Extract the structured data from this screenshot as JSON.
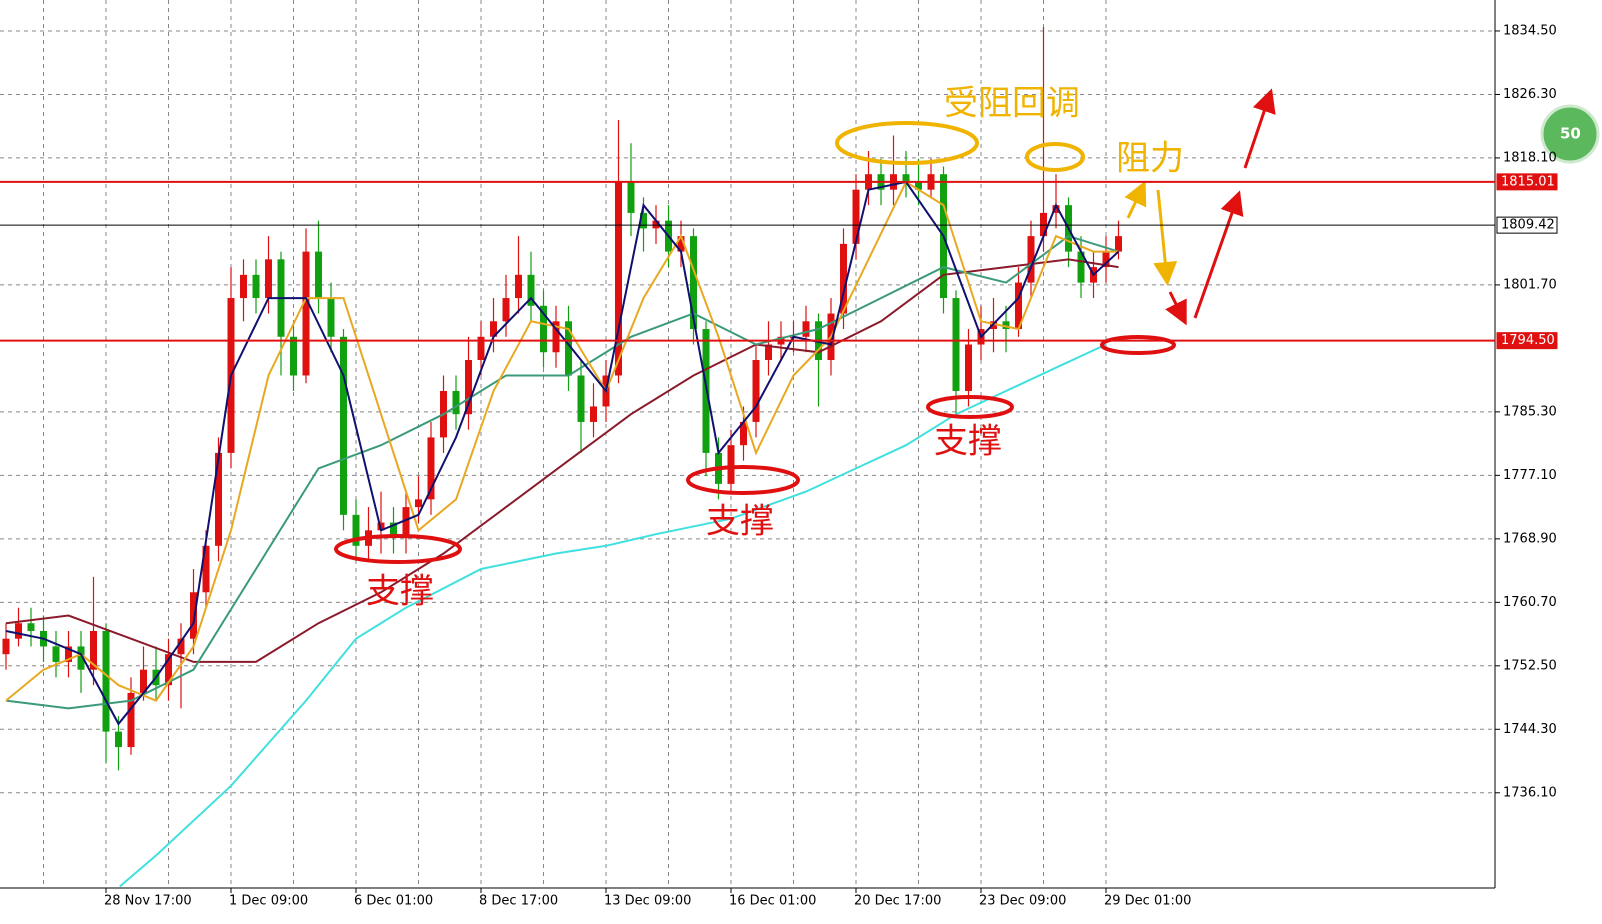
{
  "chart_data": {
    "type": "candlestick",
    "x": [
      null,
      null,
      null,
      null,
      null,
      null,
      null,
      null,
      "28 Nov 17:00",
      null,
      null,
      null,
      null,
      null,
      null,
      null,
      null,
      null,
      "1 Dec 09:00",
      null,
      null,
      null,
      null,
      null,
      null,
      null,
      null,
      null,
      "6 Dec 01:00",
      null,
      null,
      null,
      null,
      null,
      null,
      null,
      null,
      null,
      "8 Dec 17:00",
      null,
      null,
      null,
      null,
      null,
      null,
      null,
      null,
      null,
      "13 Dec 09:00",
      null,
      null,
      null,
      null,
      null,
      null,
      null,
      null,
      null,
      "16 Dec 01:00",
      null,
      null,
      null,
      null,
      null,
      null,
      null,
      null,
      null,
      "20 Dec 17:00",
      null,
      null,
      null,
      null,
      null,
      null,
      null,
      null,
      null,
      "23 Dec 09:00",
      null,
      null,
      null,
      null,
      null,
      null,
      null,
      null,
      null,
      "29 Dec 01:00",
      null
    ],
    "open": [
      1754,
      1756,
      1758,
      1757,
      1755,
      1753,
      1755,
      1752,
      1757,
      1744,
      1742,
      1749,
      1752,
      1750,
      1754,
      1756,
      1762,
      1768,
      1780,
      1800,
      1803,
      1800,
      1805,
      1795,
      1790,
      1806,
      1800,
      1795,
      1772,
      1768,
      1770,
      1771,
      1769,
      1773,
      1774,
      1782,
      1788,
      1785,
      1792,
      1795,
      1797,
      1800,
      1803,
      1799,
      1793,
      1797,
      1790,
      1784,
      1786,
      1790,
      1815,
      1811,
      1809,
      1810,
      1806,
      1808,
      1796,
      1780,
      1776,
      1781,
      1784,
      1792,
      1794,
      1795,
      1795,
      1797,
      1792,
      1798,
      1807,
      1814,
      1816,
      1814,
      1816,
      1815,
      1814,
      1816,
      1800,
      1788,
      1794,
      1796,
      1797,
      1796,
      1802,
      1808,
      1811,
      1812,
      1806,
      1802,
      1804,
      1806
    ],
    "high": [
      1758,
      1760,
      1760,
      1759,
      1757,
      1757,
      1757,
      1764,
      1758,
      1746,
      1751,
      1755,
      1755,
      1756,
      1758,
      1765,
      1770,
      1782,
      1804,
      1805,
      1805,
      1808,
      1806,
      1797,
      1809,
      1810,
      1802,
      1796,
      1774,
      1773,
      1775,
      1773,
      1775,
      1777,
      1784,
      1790,
      1790,
      1795,
      1797,
      1800,
      1803,
      1808,
      1806,
      1801,
      1799,
      1799,
      1792,
      1789,
      1792,
      1823,
      1820,
      1813,
      1812,
      1812,
      1810,
      1809,
      1797,
      1782,
      1783,
      1786,
      1794,
      1797,
      1797,
      1797,
      1799,
      1798,
      1800,
      1809,
      1816,
      1819,
      1818,
      1821,
      1819,
      1818,
      1818,
      1817,
      1801,
      1796,
      1799,
      1800,
      1799,
      1804,
      1810,
      1835,
      1816,
      1813,
      1808,
      1806,
      1808,
      1810
    ],
    "low": [
      1752,
      1755,
      1755,
      1753,
      1751,
      1751,
      1749,
      1750,
      1740,
      1739,
      1741,
      1748,
      1748,
      1748,
      1747,
      1754,
      1760,
      1766,
      1778,
      1797,
      1798,
      1798,
      1790,
      1788,
      1789,
      1798,
      1793,
      1770,
      1766,
      1766,
      1767,
      1767,
      1767,
      1771,
      1772,
      1780,
      1783,
      1783,
      1790,
      1793,
      1795,
      1798,
      1797,
      1791,
      1791,
      1788,
      1780,
      1782,
      1784,
      1789,
      1808,
      1806,
      1807,
      1804,
      1804,
      1794,
      1777,
      1774,
      1775,
      1779,
      1782,
      1790,
      1792,
      1793,
      1793,
      1786,
      1790,
      1796,
      1805,
      1812,
      1812,
      1812,
      1813,
      1812,
      1813,
      1798,
      1785,
      1786,
      1792,
      1793,
      1793,
      1795,
      1800,
      1806,
      1809,
      1804,
      1800,
      1800,
      1802,
      1805
    ],
    "close": [
      1756,
      1758,
      1757,
      1755,
      1753,
      1755,
      1752,
      1757,
      1744,
      1742,
      1749,
      1752,
      1750,
      1754,
      1756,
      1762,
      1768,
      1780,
      1800,
      1803,
      1800,
      1805,
      1795,
      1790,
      1806,
      1800,
      1795,
      1772,
      1768,
      1770,
      1771,
      1769,
      1773,
      1774,
      1782,
      1788,
      1785,
      1792,
      1795,
      1797,
      1800,
      1803,
      1799,
      1793,
      1797,
      1790,
      1784,
      1786,
      1790,
      1815,
      1811,
      1809,
      1810,
      1806,
      1808,
      1796,
      1780,
      1776,
      1781,
      1784,
      1792,
      1794,
      1795,
      1795,
      1797,
      1792,
      1798,
      1807,
      1814,
      1816,
      1814,
      1816,
      1815,
      1814,
      1816,
      1800,
      1788,
      1794,
      1796,
      1797,
      1796,
      1802,
      1808,
      1811,
      1812,
      1806,
      1802,
      1804,
      1806,
      1808
    ],
    "up_color": "#e01010",
    "down_color": "#10a010",
    "lines": [
      {
        "color": "#40e0e0",
        "x": [
          9.1,
          12,
          18,
          24,
          28,
          32,
          38,
          44,
          48,
          52,
          58,
          64,
          68,
          72,
          76,
          80,
          84,
          88
        ],
        "values": [
          1724,
          1728,
          1737,
          1748,
          1756,
          1760,
          1765,
          1767,
          1768,
          1769.5,
          1771.5,
          1775,
          1778,
          1781,
          1785,
          1788,
          1791,
          1794
        ]
      },
      {
        "color": "#8b1a2a",
        "x": [
          0,
          5,
          10,
          15,
          20,
          25,
          30,
          35,
          40,
          45,
          50,
          55,
          60,
          65,
          70,
          75,
          80,
          85,
          89
        ],
        "values": [
          1758,
          1759,
          1756,
          1753,
          1753,
          1758,
          1762,
          1767,
          1773,
          1779,
          1785,
          1790,
          1794,
          1793,
          1797,
          1803,
          1804,
          1805,
          1804
        ]
      },
      {
        "color": "#3a9a7a",
        "x": [
          0,
          5,
          10,
          15,
          20,
          25,
          30,
          35,
          40,
          45,
          50,
          55,
          60,
          65,
          70,
          75,
          80,
          85,
          89
        ],
        "values": [
          1748,
          1747,
          1748,
          1752,
          1765,
          1778,
          1781,
          1785,
          1790,
          1790,
          1795,
          1798,
          1794,
          1796,
          1800,
          1804,
          1802,
          1808,
          1806
        ]
      },
      {
        "color": "#e8a820",
        "x": [
          0,
          3,
          6,
          9,
          12,
          15,
          18,
          21,
          24,
          27,
          30,
          33,
          36,
          39,
          42,
          45,
          48,
          51,
          54,
          57,
          60,
          63,
          66,
          69,
          72,
          75,
          78,
          81,
          84,
          87,
          89
        ],
        "values": [
          1748,
          1752,
          1754,
          1750,
          1748,
          1755,
          1770,
          1790,
          1800,
          1800,
          1785,
          1770,
          1774,
          1788,
          1797,
          1796,
          1788,
          1800,
          1808,
          1795,
          1780,
          1790,
          1795,
          1805,
          1815,
          1812,
          1797,
          1796,
          1808,
          1806,
          1806
        ]
      },
      {
        "color": "#101070",
        "x": [
          0,
          3,
          6,
          9,
          12,
          15,
          18,
          21,
          24,
          27,
          30,
          33,
          36,
          39,
          42,
          45,
          48,
          51,
          54,
          57,
          60,
          63,
          66,
          69,
          72,
          75,
          78,
          81,
          84,
          87,
          89
        ],
        "values": [
          1757,
          1756,
          1754,
          1745,
          1751,
          1758,
          1790,
          1800,
          1800,
          1790,
          1770,
          1772,
          1782,
          1795,
          1800,
          1794,
          1788,
          1812,
          1806,
          1780,
          1786,
          1795,
          1794,
          1814,
          1815,
          1808,
          1795,
          1800,
          1812,
          1803,
          1806
        ]
      }
    ],
    "horizontal_lines": [
      {
        "value": 1815.01,
        "color": "#e01010"
      },
      {
        "value": 1809.42,
        "color": "#000000"
      },
      {
        "value": {
          "value": 1794.5,
          "label": "1794.50"
        },
        "color": "#e01010"
      }
    ],
    "ylim": [
      1723.8,
      1838.5
    ],
    "yticks": [
      {
        "value": 1834.5,
        "label": "1834.50"
      },
      {
        "value": 1826.3,
        "label": "1826.30"
      },
      {
        "value": 1818.1,
        "label": "1818.10"
      },
      {
        "value": 1801.7,
        "label": "1801.70"
      },
      {
        "value": 1785.3,
        "label": "1785.30"
      },
      {
        "value": 1777.1,
        "label": "1777.10"
      },
      {
        "value": 1768.9,
        "label": "1768.90"
      },
      {
        "value": 1760.7,
        "label": "1760.70"
      },
      {
        "value": 1752.5,
        "label": "1752.50"
      },
      {
        "value": 1744.3,
        "label": "1744.30"
      },
      {
        "value": 1736.1,
        "label": "1736.10"
      }
    ],
    "grid": true,
    "annotations": [
      "受阻回调",
      "阻力",
      "支撑",
      "支撑",
      "支撑"
    ],
    "badge": "50"
  }
}
